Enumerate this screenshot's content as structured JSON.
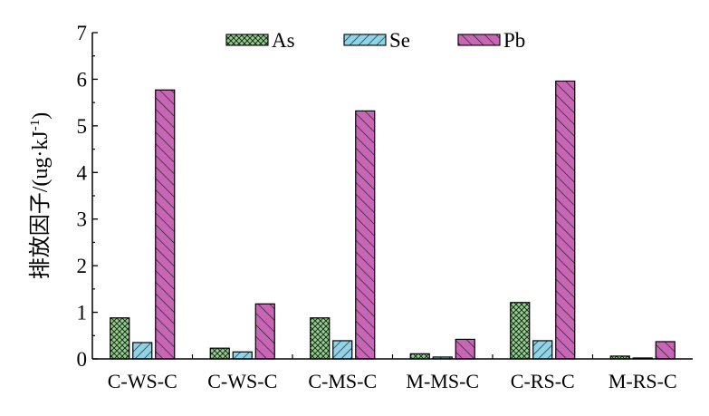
{
  "chart_data": {
    "type": "bar",
    "title": "",
    "xlabel": "",
    "ylabel_main": "排放因子/(ug",
    "ylabel_dot": "·",
    "ylabel_unit": "kJ",
    "ylabel_exp": "-1",
    "ylabel_close": ")",
    "ylim": [
      0,
      7
    ],
    "yticks": [
      "0",
      "1",
      "2",
      "3",
      "4",
      "5",
      "6",
      "7"
    ],
    "categories": [
      "C-WS-C",
      "C-WS-C",
      "C-MS-C",
      "M-MS-C",
      "C-RS-C",
      "M-RS-C"
    ],
    "series": [
      {
        "name": "As",
        "values": [
          0.88,
          0.23,
          0.88,
          0.11,
          1.21,
          0.06
        ],
        "color": "#8fd18a",
        "pattern": "crosshatch"
      },
      {
        "name": "Se",
        "values": [
          0.35,
          0.15,
          0.39,
          0.04,
          0.39,
          0.02
        ],
        "color": "#8fd3e6",
        "pattern": "diagonal"
      },
      {
        "name": "Pb",
        "values": [
          5.77,
          1.18,
          5.32,
          0.42,
          5.96,
          0.37
        ],
        "color": "#c866b6",
        "pattern": "diagonal"
      }
    ],
    "legend_position": "top-center",
    "grid": false
  }
}
